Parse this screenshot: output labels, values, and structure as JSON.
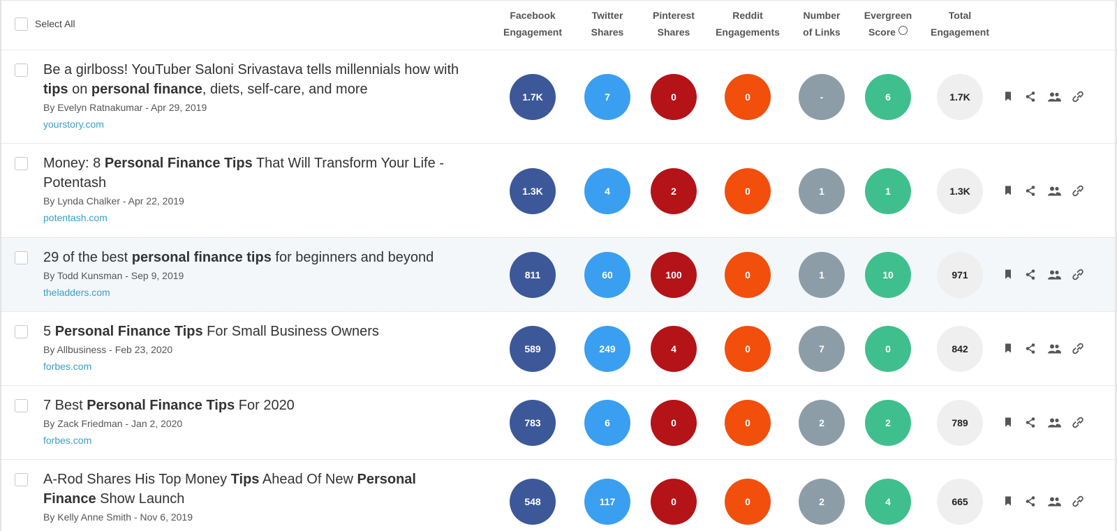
{
  "header": {
    "select_all": "Select All",
    "columns": [
      [
        "Facebook",
        "Engagement"
      ],
      [
        "Twitter",
        "Shares"
      ],
      [
        "Pinterest",
        "Shares"
      ],
      [
        "Reddit",
        "Engagements"
      ],
      [
        "Number",
        "of Links"
      ],
      [
        "Evergreen",
        "Score"
      ],
      [
        "Total",
        "Engagement"
      ]
    ]
  },
  "metric_colors": [
    "#3c5899",
    "#3a9ff0",
    "#b41318",
    "#f24e0c",
    "#8c9da8",
    "#3fbf8d",
    "#efefef"
  ],
  "rows": [
    {
      "title": [
        {
          "text": "Be a girlboss! YouTuber Saloni Srivastava tells millennials how with ",
          "bold": false
        },
        {
          "text": "tips",
          "bold": true
        },
        {
          "text": " on ",
          "bold": false
        },
        {
          "text": "personal finance",
          "bold": true
        },
        {
          "text": ", diets, self-care, and more",
          "bold": false
        }
      ],
      "byline": "By Evelyn Ratnakumar - Apr 29, 2019",
      "domain": "yourstory.com",
      "metrics": [
        "1.7K",
        "7",
        "0",
        "0",
        "-",
        "6",
        "1.7K"
      ],
      "highlighted": false
    },
    {
      "title": [
        {
          "text": "Money: 8 ",
          "bold": false
        },
        {
          "text": "Personal Finance Tips",
          "bold": true
        },
        {
          "text": " That Will Transform Your Life - Potentash",
          "bold": false
        }
      ],
      "byline": "By Lynda Chalker - Apr 22, 2019",
      "domain": "potentash.com",
      "metrics": [
        "1.3K",
        "4",
        "2",
        "0",
        "1",
        "1",
        "1.3K"
      ],
      "highlighted": false
    },
    {
      "title": [
        {
          "text": "29 of the best ",
          "bold": false
        },
        {
          "text": "personal finance tips",
          "bold": true
        },
        {
          "text": " for beginners and beyond",
          "bold": false
        }
      ],
      "byline": "By Todd Kunsman - Sep 9, 2019",
      "domain": "theladders.com",
      "metrics": [
        "811",
        "60",
        "100",
        "0",
        "1",
        "10",
        "971"
      ],
      "highlighted": true
    },
    {
      "title": [
        {
          "text": "5 ",
          "bold": false
        },
        {
          "text": "Personal Finance Tips",
          "bold": true
        },
        {
          "text": " For Small Business Owners",
          "bold": false
        }
      ],
      "byline": "By Allbusiness - Feb 23, 2020",
      "domain": "forbes.com",
      "metrics": [
        "589",
        "249",
        "4",
        "0",
        "7",
        "0",
        "842"
      ],
      "highlighted": false
    },
    {
      "title": [
        {
          "text": "7 Best ",
          "bold": false
        },
        {
          "text": "Personal Finance Tips",
          "bold": true
        },
        {
          "text": " For 2020",
          "bold": false
        }
      ],
      "byline": "By Zack Friedman - Jan 2, 2020",
      "domain": "forbes.com",
      "metrics": [
        "783",
        "6",
        "0",
        "0",
        "2",
        "2",
        "789"
      ],
      "highlighted": false
    },
    {
      "title": [
        {
          "text": "A-Rod Shares His Top Money ",
          "bold": false
        },
        {
          "text": "Tips",
          "bold": true
        },
        {
          "text": " Ahead Of New ",
          "bold": false
        },
        {
          "text": "Personal Finance",
          "bold": true
        },
        {
          "text": " Show Launch",
          "bold": false
        }
      ],
      "byline": "By Kelly Anne Smith - Nov 6, 2019",
      "metrics": [
        "548",
        "117",
        "0",
        "0",
        "2",
        "4",
        "665"
      ],
      "highlighted": false
    }
  ]
}
